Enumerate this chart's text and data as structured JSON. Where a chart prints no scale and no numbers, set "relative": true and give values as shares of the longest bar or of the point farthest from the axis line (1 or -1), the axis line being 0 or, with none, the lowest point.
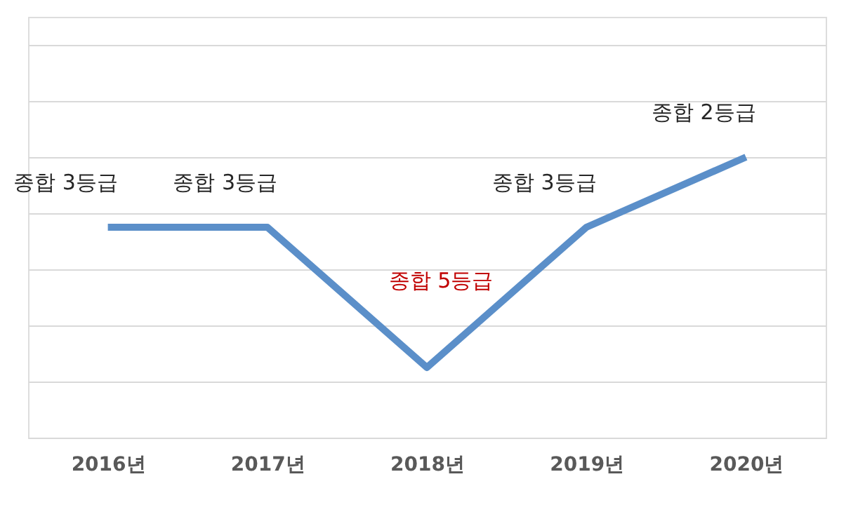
{
  "chart_data": {
    "type": "line",
    "relative": true,
    "categories": [
      "2016년",
      "2017년",
      "2018년",
      "2019년",
      "2020년"
    ],
    "series": [
      {
        "color": "#5b8fc9",
        "values": [
          0.75,
          0.75,
          0.25,
          0.75,
          1.0
        ]
      }
    ],
    "value_labels": [
      "종합 3등급",
      "종합 3등급",
      "종합 5등급",
      "종합 3등급",
      "종합 2등급"
    ],
    "grid": "y",
    "marker": "none",
    "line_style": "solid"
  }
}
